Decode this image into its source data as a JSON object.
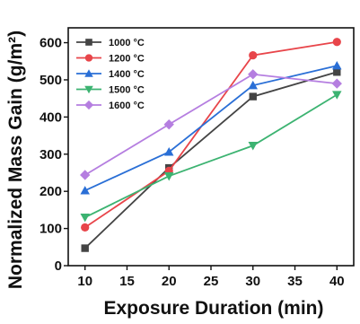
{
  "chart_data": {
    "type": "line",
    "xlabel": "Exposure Duration (min)",
    "ylabel": "Normalized Mass Gain (g/m²)",
    "x": [
      10,
      20,
      30,
      40
    ],
    "xlim": [
      8,
      42
    ],
    "ylim": [
      0,
      640
    ],
    "xticks": [
      10,
      15,
      20,
      25,
      30,
      35,
      40
    ],
    "yticks": [
      0,
      100,
      200,
      300,
      400,
      500,
      600
    ],
    "grid": false,
    "legend_position": "top-left",
    "series": [
      {
        "name": "1000 °C",
        "color": "#444444",
        "marker": "square",
        "values": [
          47,
          263,
          455,
          521
        ]
      },
      {
        "name": "1200 °C",
        "color": "#e8454a",
        "marker": "circle",
        "values": [
          103,
          255,
          566,
          602
        ]
      },
      {
        "name": "1400 °C",
        "color": "#2a6fd6",
        "marker": "triangle-up",
        "values": [
          202,
          306,
          485,
          538
        ]
      },
      {
        "name": "1500 °C",
        "color": "#3cb371",
        "marker": "triangle-down",
        "values": [
          130,
          241,
          323,
          460
        ]
      },
      {
        "name": "1600 °C",
        "color": "#b57ee0",
        "marker": "diamond",
        "values": [
          244,
          380,
          515,
          490
        ]
      }
    ]
  }
}
